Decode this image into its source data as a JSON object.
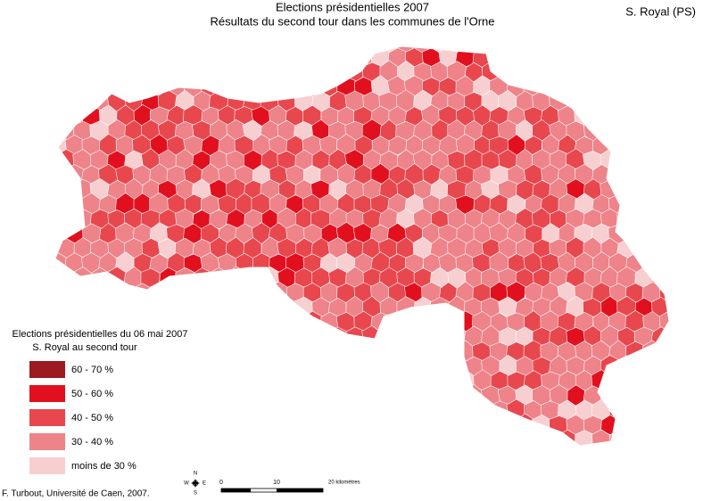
{
  "header": {
    "title": "Elections présidentielles 2007",
    "subtitle": "Résultats du second tour dans les communes de l'Orne",
    "candidate": "S. Royal (PS)"
  },
  "legend": {
    "title": "Elections présidentielles du 06 mai 2007",
    "subtitle": "S. Royal au second tour",
    "items": [
      {
        "label": "60 - 70 %",
        "color": "#9b1b20"
      },
      {
        "label": "50 - 60 %",
        "color": "#e2101e"
      },
      {
        "label": "40 - 50 %",
        "color": "#e8474e"
      },
      {
        "label": "30 - 40 %",
        "color": "#ee8389"
      },
      {
        "label": "moins de 30 %",
        "color": "#f8cfd0"
      }
    ]
  },
  "compass": {
    "n": "N",
    "s": "S",
    "e": "E",
    "w": "W"
  },
  "scale": {
    "zero": "0",
    "mid": "10",
    "end": "20 kilomètres"
  },
  "credit": "F. Turbout, Université de Caen, 2007."
}
